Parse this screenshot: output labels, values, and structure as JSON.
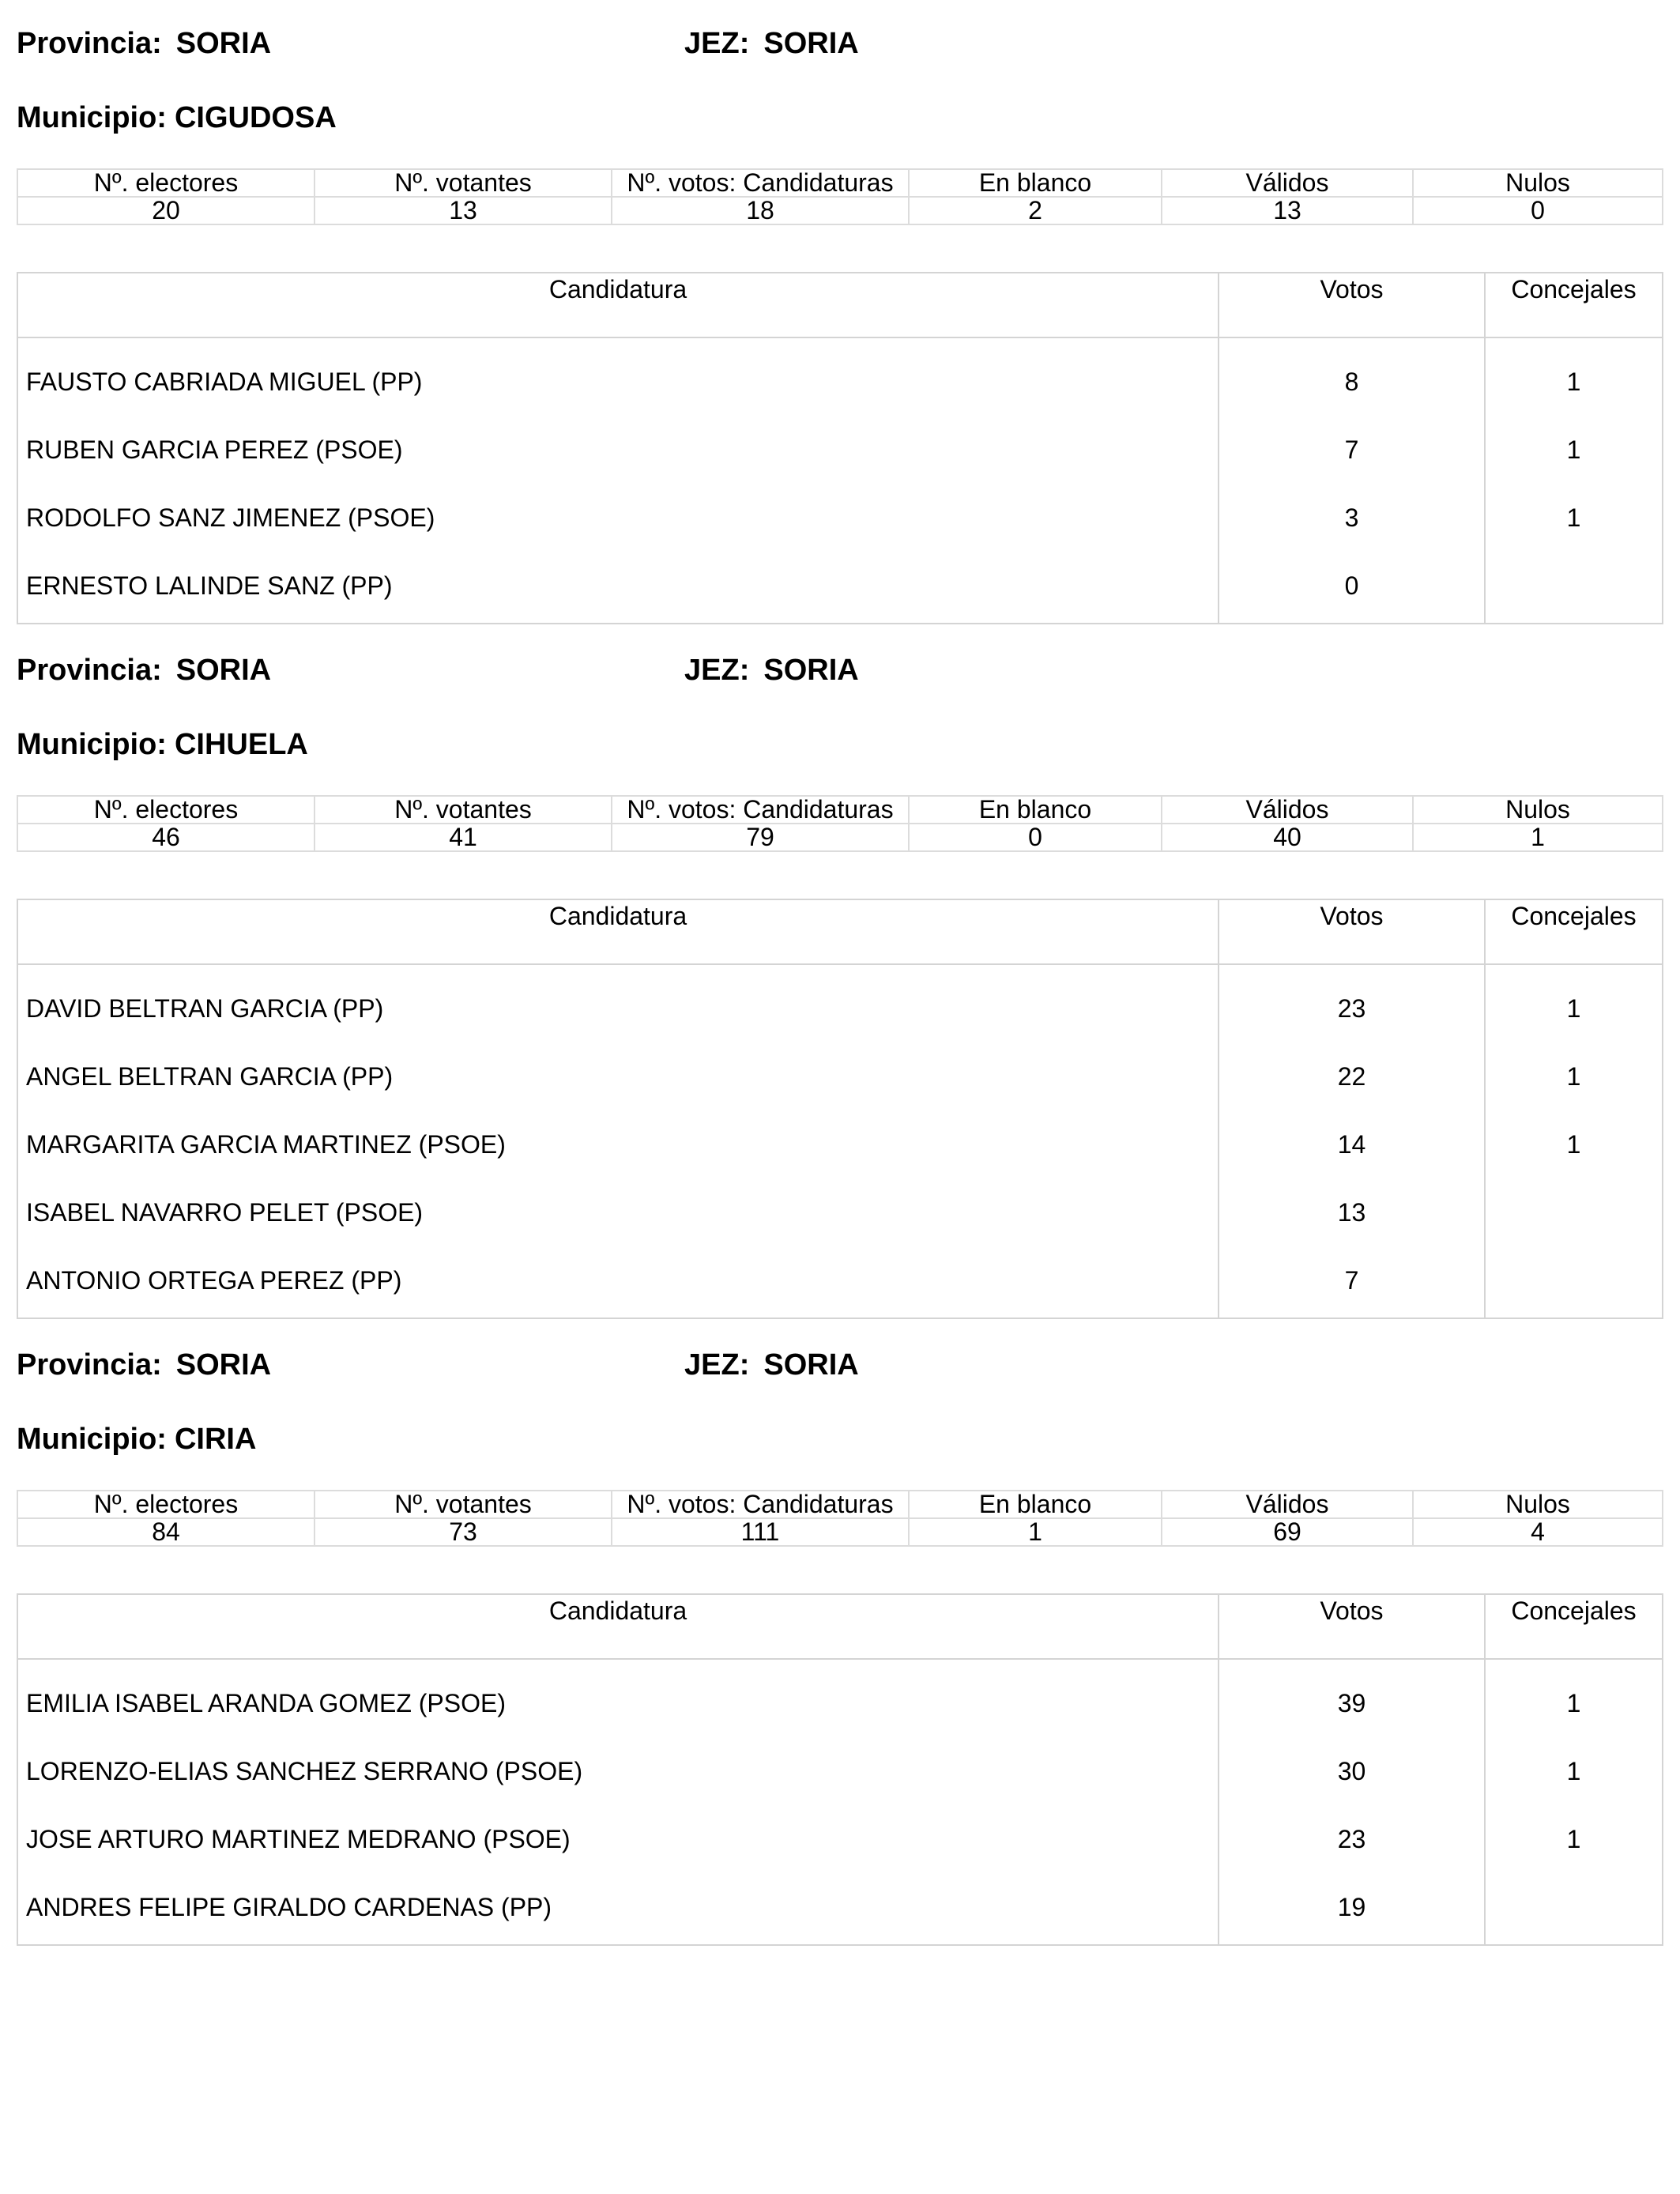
{
  "labels": {
    "provincia": "Provincia:",
    "jez": "JEZ:",
    "municipio": "Municipio:",
    "stats_headers": [
      "Nº. electores",
      "Nº. votantes",
      "Nº. votos: Candidaturas",
      "En blanco",
      "Válidos",
      "Nulos"
    ],
    "cand_header": "Candidatura",
    "votes_header": "Votos",
    "conc_header": "Concejales"
  },
  "sections": [
    {
      "provincia": "SORIA",
      "jez": "SORIA",
      "municipio": "CIGUDOSA",
      "stats": [
        "20",
        "13",
        "18",
        "2",
        "13",
        "0"
      ],
      "candidates": [
        {
          "name": "FAUSTO CABRIADA MIGUEL (PP)",
          "votes": "8",
          "concejales": "1"
        },
        {
          "name": "RUBEN GARCIA PEREZ (PSOE)",
          "votes": "7",
          "concejales": "1"
        },
        {
          "name": "RODOLFO SANZ JIMENEZ (PSOE)",
          "votes": "3",
          "concejales": "1"
        },
        {
          "name": "ERNESTO LALINDE SANZ (PP)",
          "votes": "0",
          "concejales": ""
        }
      ]
    },
    {
      "provincia": "SORIA",
      "jez": "SORIA",
      "municipio": "CIHUELA",
      "stats": [
        "46",
        "41",
        "79",
        "0",
        "40",
        "1"
      ],
      "candidates": [
        {
          "name": "DAVID BELTRAN GARCIA (PP)",
          "votes": "23",
          "concejales": "1"
        },
        {
          "name": "ANGEL BELTRAN GARCIA (PP)",
          "votes": "22",
          "concejales": "1"
        },
        {
          "name": "MARGARITA GARCIA MARTINEZ (PSOE)",
          "votes": "14",
          "concejales": "1"
        },
        {
          "name": "ISABEL NAVARRO PELET (PSOE)",
          "votes": "13",
          "concejales": ""
        },
        {
          "name": "ANTONIO ORTEGA PEREZ (PP)",
          "votes": "7",
          "concejales": ""
        }
      ]
    },
    {
      "provincia": "SORIA",
      "jez": "SORIA",
      "municipio": "CIRIA",
      "stats": [
        "84",
        "73",
        "111",
        "1",
        "69",
        "4"
      ],
      "candidates": [
        {
          "name": "EMILIA ISABEL ARANDA GOMEZ (PSOE)",
          "votes": "39",
          "concejales": "1"
        },
        {
          "name": "LORENZO-ELIAS SANCHEZ SERRANO (PSOE)",
          "votes": "30",
          "concejales": "1"
        },
        {
          "name": "JOSE ARTURO MARTINEZ MEDRANO (PSOE)",
          "votes": "23",
          "concejales": "1"
        },
        {
          "name": "ANDRES FELIPE GIRALDO CARDENAS (PP)",
          "votes": "19",
          "concejales": ""
        }
      ]
    }
  ]
}
